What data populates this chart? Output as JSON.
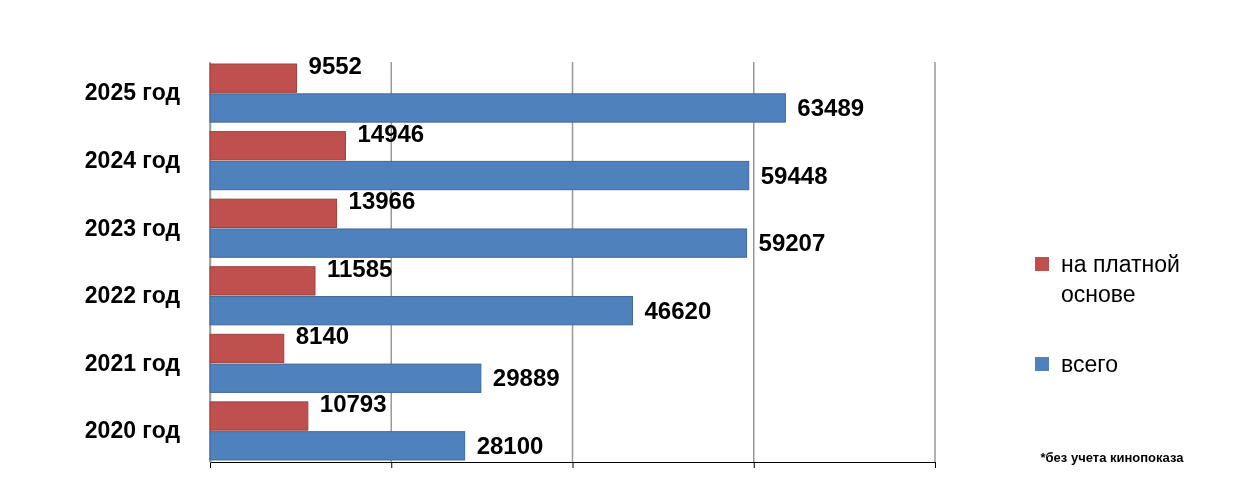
{
  "chart_data": {
    "type": "bar",
    "orientation": "horizontal",
    "categories": [
      "2025 год",
      "2024 год",
      "2023 год",
      "2022 год",
      "2021 год",
      "2020 год"
    ],
    "series": [
      {
        "name": "на платной основе",
        "color": "#c0504d",
        "values": [
          9552,
          14946,
          13966,
          11585,
          8140,
          10793
        ]
      },
      {
        "name": "всего",
        "color": "#4f81bd",
        "values": [
          63489,
          59448,
          59207,
          46620,
          29889,
          28100
        ]
      }
    ],
    "xlim": [
      0,
      80000
    ],
    "xticks": [
      0,
      20000,
      40000,
      60000,
      80000
    ],
    "tick_labels": "y",
    "grid": "x",
    "legend": "right",
    "data_labels": true,
    "annotations": [
      "*без учета кинопоказа"
    ]
  }
}
